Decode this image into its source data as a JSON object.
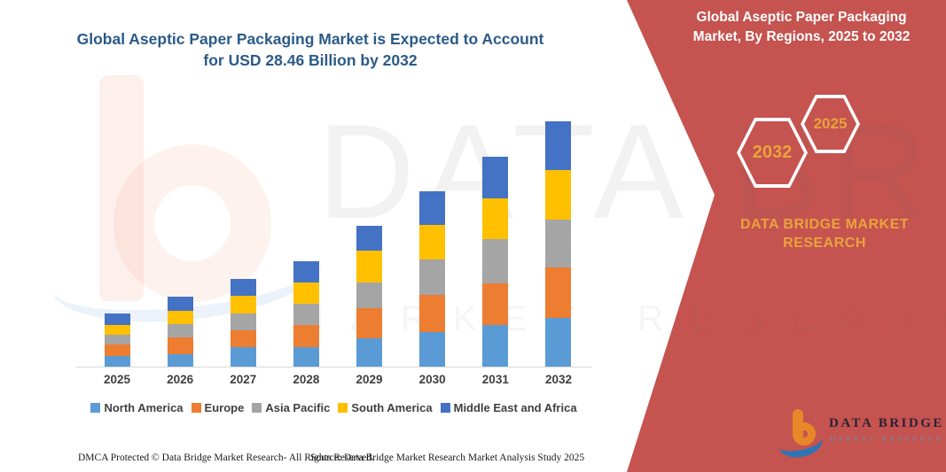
{
  "colors": {
    "panel_bg": "#C5534F",
    "panel_accent": "#E8A33D",
    "title_color": "#2B5A88",
    "axis_line": "#d9d9d9"
  },
  "title": {
    "line1": "Global Aseptic Paper Packaging Market is Expected to Account",
    "line2": "for USD 28.46 Billion by 2032"
  },
  "chart_data": {
    "type": "bar",
    "stacked": true,
    "title": "Global Aseptic Paper Packaging Market is Expected to Account for USD 28.46 Billion by 2032",
    "unit": "USD Billion",
    "categories": [
      "2025",
      "2026",
      "2027",
      "2028",
      "2029",
      "2030",
      "2031",
      "2032"
    ],
    "series": [
      {
        "name": "North America",
        "color": "#5B9BD5",
        "values": [
          1.26,
          1.47,
          2.22,
          2.29,
          3.25,
          4.0,
          4.79,
          5.64
        ]
      },
      {
        "name": "Europe",
        "color": "#ED7D31",
        "values": [
          1.3,
          1.88,
          1.98,
          2.49,
          3.52,
          4.34,
          4.85,
          5.81
        ]
      },
      {
        "name": "Asia Pacific",
        "color": "#A5A5A5",
        "values": [
          1.1,
          1.61,
          1.95,
          2.49,
          2.97,
          4.03,
          5.12,
          5.62
        ]
      },
      {
        "name": "South America",
        "color": "#FFC000",
        "values": [
          1.2,
          1.54,
          2.05,
          2.53,
          3.69,
          4.0,
          4.71,
          5.75
        ]
      },
      {
        "name": "Middle East and Africa",
        "color": "#4472C4",
        "values": [
          1.26,
          1.61,
          1.95,
          2.39,
          2.84,
          3.93,
          4.82,
          5.64
        ]
      }
    ],
    "totals": [
      6.12,
      8.11,
      10.15,
      12.19,
      16.27,
      20.3,
      24.29,
      28.46
    ],
    "ylim": [
      0,
      30
    ],
    "grid": false,
    "y_axis_visible": false,
    "legend_position": "bottom",
    "annotation": "USD 28.46 Billion by 2032"
  },
  "panel": {
    "title_line1": "Global Aseptic Paper Packaging",
    "title_line2": "Market, By Regions, 2025 to 2032",
    "hexagon_back_label": "2032",
    "hexagon_front_label": "2025",
    "brand_line1": "DATA BRIDGE MARKET",
    "brand_line2": "RESEARCH"
  },
  "logo": {
    "name_text": "DATA BRIDGE",
    "sub_text": "MARKET RESEARCH"
  },
  "watermark": {
    "big": "DATA BRIDGE",
    "small": "MARKET RESEARCH"
  },
  "footer": {
    "left": "DMCA Protected © Data Bridge Market Research-  All Rights Reserved.",
    "source": "Source: Data Bridge Market Research  Market Analysis Study 2025"
  }
}
